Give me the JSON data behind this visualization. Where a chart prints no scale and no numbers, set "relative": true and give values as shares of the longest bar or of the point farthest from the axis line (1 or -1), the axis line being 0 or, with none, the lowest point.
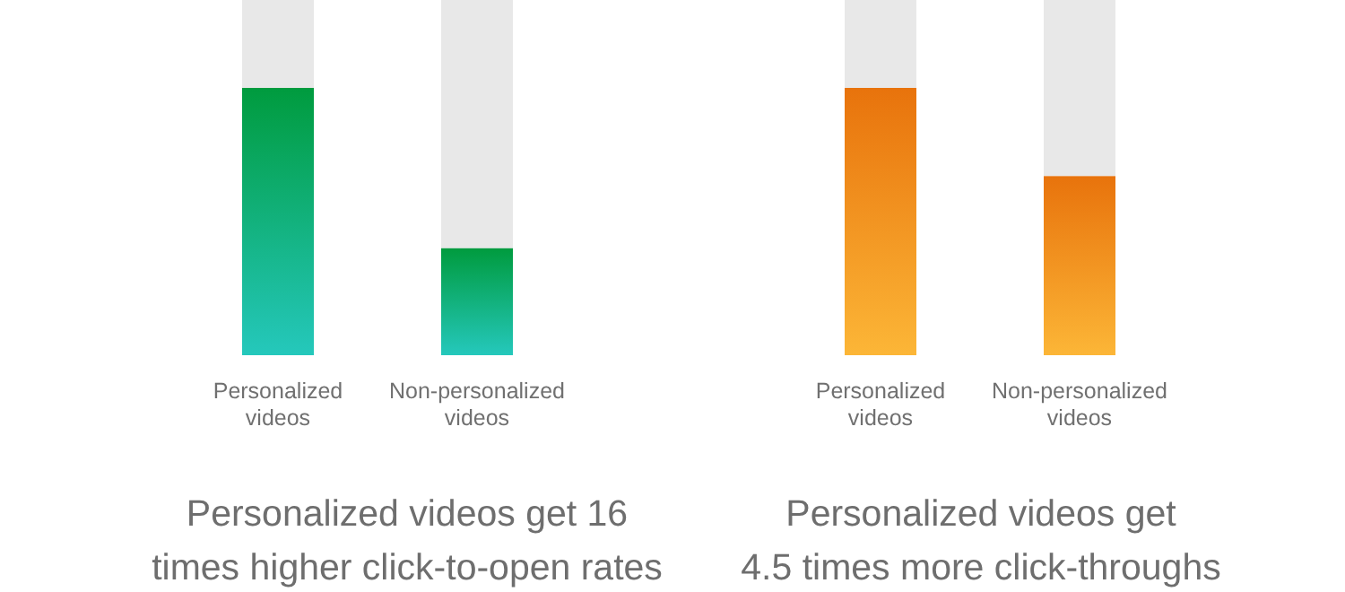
{
  "chart_data": [
    {
      "type": "bar",
      "relative": true,
      "categories": [
        "Personalized videos",
        "Non-personalized videos"
      ],
      "values": [
        1,
        0.4
      ],
      "colors": [
        "#009b3e",
        "#009b3e"
      ],
      "title": "Personalized videos get 16\ntimes higher click-to-open rates"
    },
    {
      "type": "bar",
      "relative": true,
      "categories": [
        "Personalized videos",
        "Non-personalized videos"
      ],
      "values": [
        1,
        0.67
      ],
      "colors": [
        "#e8730c",
        "#e8730c"
      ],
      "title": "Personalized videos get\n4.5 times more click-throughs"
    }
  ]
}
